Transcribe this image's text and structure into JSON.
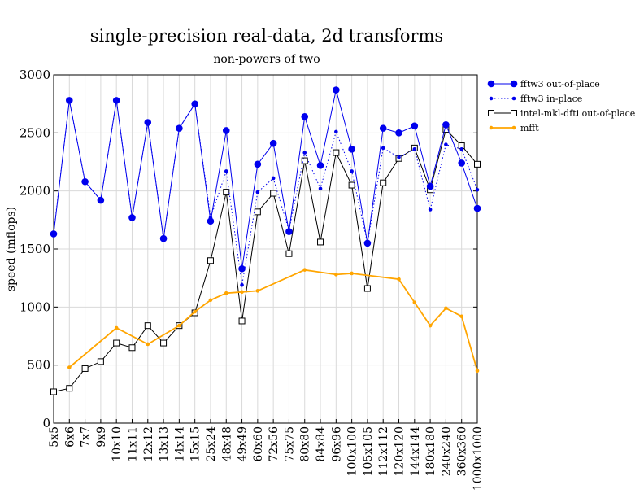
{
  "chart_data": {
    "type": "line",
    "title": "single-precision real-data, 2d transforms",
    "subtitle": "non-powers of two",
    "xlabel": "",
    "ylabel": "speed (mflops)",
    "ylim": [
      0,
      3000
    ],
    "yticks": [
      "0",
      "500",
      "1000",
      "1500",
      "2000",
      "2500",
      "3000"
    ],
    "ytick_values": [
      0,
      500,
      1000,
      1500,
      2000,
      2500,
      3000
    ],
    "grid": true,
    "legend_position": "top-right",
    "categories": [
      "5x5",
      "6x6",
      "7x7",
      "9x9",
      "10x10",
      "11x11",
      "12x12",
      "13x13",
      "14x14",
      "15x15",
      "25x24",
      "48x48",
      "49x49",
      "60x60",
      "72x56",
      "75x75",
      "80x80",
      "84x84",
      "96x96",
      "100x100",
      "105x105",
      "112x112",
      "120x120",
      "144x144",
      "180x180",
      "240x240",
      "360x360",
      "1000x1000"
    ],
    "series": [
      {
        "name": "fftw3 out-of-place",
        "color": "#0000ee",
        "line": "solid",
        "marker": "filled-circle",
        "values": [
          1630,
          2780,
          2080,
          1920,
          2780,
          1770,
          2590,
          1590,
          2540,
          2750,
          1740,
          2520,
          1330,
          2230,
          2410,
          1650,
          2640,
          2220,
          2870,
          2360,
          1550,
          2540,
          2500,
          2560,
          2040,
          2570,
          2240,
          1850
        ]
      },
      {
        "name": "fftw3 in-place",
        "color": "#0000ee",
        "line": "dotted",
        "marker": "small-dot",
        "values": [
          1640,
          2780,
          2080,
          1920,
          2780,
          1770,
          2590,
          1590,
          2540,
          2750,
          1770,
          2170,
          1190,
          1990,
          2110,
          1660,
          2330,
          2020,
          2510,
          2170,
          1550,
          2370,
          2290,
          2360,
          1840,
          2400,
          2360,
          2010
        ]
      },
      {
        "name": "intel-mkl-dfti out-of-place",
        "color": "#000000",
        "line": "solid",
        "marker": "open-square",
        "values": [
          270,
          300,
          470,
          530,
          690,
          650,
          840,
          690,
          840,
          950,
          1400,
          1990,
          880,
          1820,
          1980,
          1460,
          2260,
          1560,
          2330,
          2050,
          1160,
          2070,
          2280,
          2370,
          2010,
          2530,
          2390,
          2230
        ]
      },
      {
        "name": "mfft",
        "color": "#ffa500",
        "line": "solid",
        "marker": "small-dot",
        "values": [
          null,
          480,
          null,
          null,
          820,
          null,
          680,
          null,
          840,
          960,
          1060,
          1120,
          1130,
          1140,
          null,
          null,
          1320,
          null,
          1280,
          1290,
          null,
          null,
          1240,
          1040,
          840,
          990,
          920,
          450
        ]
      }
    ]
  }
}
